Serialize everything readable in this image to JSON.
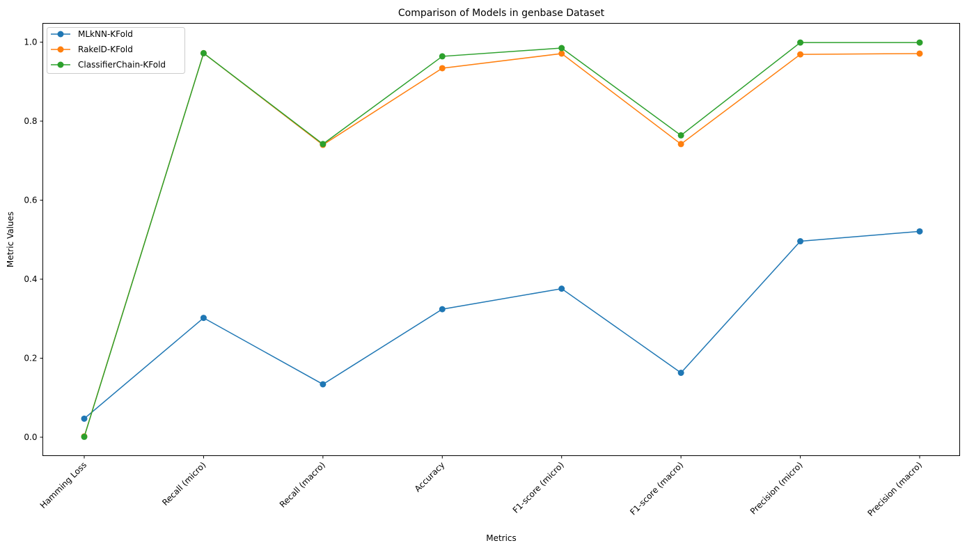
{
  "chart_data": {
    "type": "line",
    "title": "Comparison of Models in genbase Dataset",
    "xlabel": "Metrics",
    "ylabel": "Metric Values",
    "categories": [
      "Hamming Loss",
      "Recall (micro)",
      "Recall (macro)",
      "Accuracy",
      "F1-score (micro)",
      "F1-score (macro)",
      "Precision (micro)",
      "Precision (macro)"
    ],
    "ylim": [
      -0.047,
      1.05
    ],
    "yticks": [
      "0.0",
      "0.2",
      "0.4",
      "0.6",
      "0.8",
      "1.0"
    ],
    "grid": false,
    "legend_position": "upper-left",
    "series": [
      {
        "name": "MLkNN-KFold",
        "color": "#1f77b4",
        "values": [
          0.047,
          0.302,
          0.134,
          0.324,
          0.376,
          0.163,
          0.496,
          0.521
        ]
      },
      {
        "name": "RakelD-KFold",
        "color": "#ff7f0e",
        "values": [
          0.002,
          0.972,
          0.74,
          0.934,
          0.971,
          0.742,
          0.969,
          0.971
        ]
      },
      {
        "name": "ClassifierChain-KFold",
        "color": "#2ca02c",
        "values": [
          0.001,
          0.972,
          0.742,
          0.964,
          0.985,
          0.764,
          0.999,
          0.999
        ]
      }
    ]
  }
}
